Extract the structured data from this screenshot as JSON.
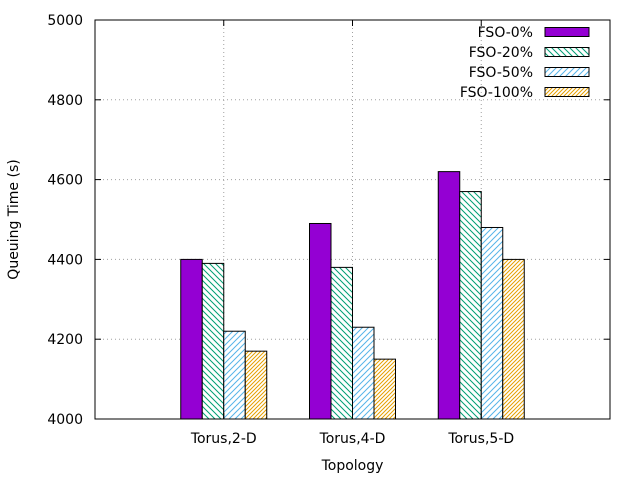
{
  "chart_data": {
    "type": "bar",
    "xlabel": "Topology",
    "ylabel": "Queuing Time (s)",
    "ylim": [
      4000,
      5000
    ],
    "yticks": [
      4000,
      4200,
      4400,
      4600,
      4800,
      5000
    ],
    "grid": true,
    "legend_position": "top-right",
    "categories": [
      "Torus,2-D",
      "Torus,4-D",
      "Torus,5-D"
    ],
    "series": [
      {
        "name": "FSO-0%",
        "values": [
          4400,
          4490,
          4620
        ],
        "color": "#9400d3",
        "pattern": "solid"
      },
      {
        "name": "FSO-20%",
        "values": [
          4390,
          4380,
          4570
        ],
        "color": "#009e73",
        "pattern": "hatch-back"
      },
      {
        "name": "FSO-50%",
        "values": [
          4220,
          4230,
          4480
        ],
        "color": "#56b4e9",
        "pattern": "hatch-forward"
      },
      {
        "name": "FSO-100%",
        "values": [
          4170,
          4150,
          4400
        ],
        "color": "#e69f00",
        "pattern": "hatch-forward-dense"
      }
    ]
  }
}
